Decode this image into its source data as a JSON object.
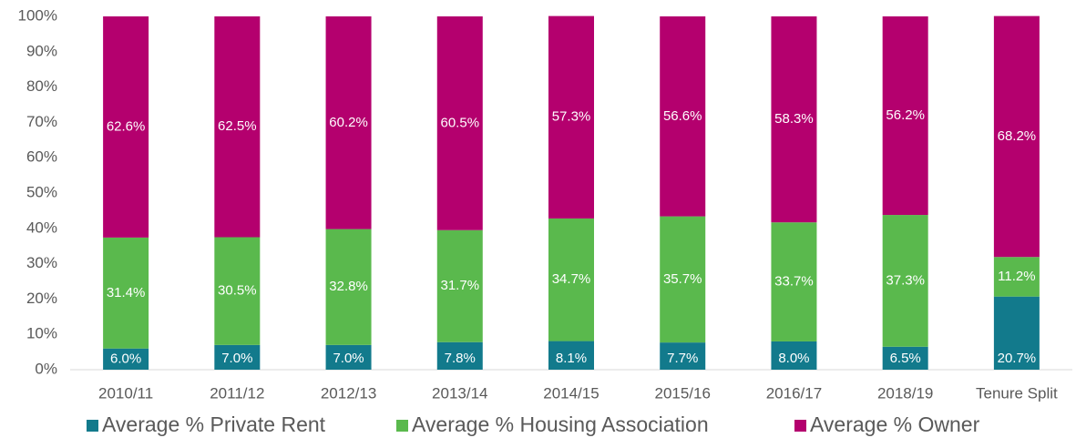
{
  "chart_data": {
    "type": "stacked_bar",
    "categories": [
      "2010/11",
      "2011/12",
      "2012/13",
      "2013/14",
      "2014/15",
      "2015/16",
      "2016/17",
      "2018/19",
      "Tenure Split"
    ],
    "series": [
      {
        "name": "Average % Private Rent",
        "color": "#127a8c",
        "values": [
          6.0,
          7.0,
          7.0,
          7.8,
          8.1,
          7.7,
          8.0,
          6.5,
          20.7
        ],
        "value_labels": [
          "6.0%",
          "7.0%",
          "7.0%",
          "7.8%",
          "8.1%",
          "7.7%",
          "8.0%",
          "6.5%",
          "20.7%"
        ]
      },
      {
        "name": "Average % Housing Association",
        "color": "#5ab94d",
        "values": [
          31.4,
          30.5,
          32.8,
          31.7,
          34.7,
          35.7,
          33.7,
          37.3,
          11.2
        ],
        "value_labels": [
          "31.4%",
          "30.5%",
          "32.8%",
          "31.7%",
          "34.7%",
          "35.7%",
          "33.7%",
          "37.3%",
          "11.2%"
        ]
      },
      {
        "name": "Average % Owner",
        "color": "#b4006e",
        "values": [
          62.6,
          62.5,
          60.2,
          60.5,
          57.3,
          56.6,
          58.3,
          56.2,
          68.2
        ],
        "value_labels": [
          "62.6%",
          "62.5%",
          "60.2%",
          "60.5%",
          "57.3%",
          "56.6%",
          "58.3%",
          "56.2%",
          "68.2%"
        ]
      }
    ],
    "ylim": [
      0,
      100
    ],
    "yticks": [
      {
        "value": 0,
        "label": "0%"
      },
      {
        "value": 10,
        "label": "10%"
      },
      {
        "value": 20,
        "label": "20%"
      },
      {
        "value": 30,
        "label": "30%"
      },
      {
        "value": 40,
        "label": "40%"
      },
      {
        "value": 50,
        "label": "50%"
      },
      {
        "value": 60,
        "label": "60%"
      },
      {
        "value": 70,
        "label": "70%"
      },
      {
        "value": 80,
        "label": "80%"
      },
      {
        "value": 90,
        "label": "90%"
      },
      {
        "value": 100,
        "label": "100%"
      }
    ],
    "legend": "bottom"
  }
}
